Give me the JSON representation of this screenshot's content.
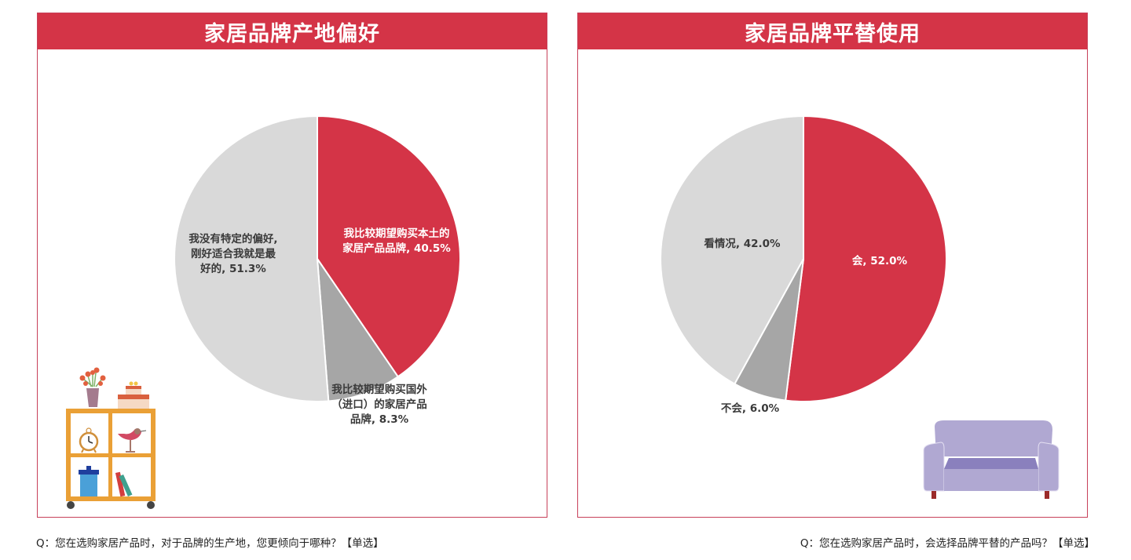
{
  "colors": {
    "accent_red": "#d43447",
    "dark_gray": "#a6a6a6",
    "light_gray": "#d9d9d9",
    "border": "#c8405a"
  },
  "left_panel": {
    "title": "家居品牌产地偏好",
    "question": "Q：您在选购家居产品时，对于品牌的生产地，您更倾向于哪种？【单选】",
    "labels": {
      "domestic_line1": "我比较期望购买本土的",
      "domestic_line2": "家居产品品牌, 40.5%",
      "import_line1": "我比较期望购买国外",
      "import_line2": "（进口）的家居产品",
      "import_line3": "品牌, 8.3%",
      "none_line1": "我没有特定的偏好,",
      "none_line2": "刚好适合我就是最",
      "none_line3": "好的, 51.3%"
    },
    "illustration": "bookshelf-illustration"
  },
  "right_panel": {
    "title": "家居品牌平替使用",
    "question": "Q：您在选购家居产品时，会选择品牌平替的产品吗？【单选】",
    "labels": {
      "yes": "会, 52.0%",
      "no": "不会, 6.0%",
      "depends": "看情况, 42.0%"
    },
    "illustration": "sofa-illustration"
  },
  "chart_data": [
    {
      "type": "pie",
      "title": "家居品牌产地偏好",
      "subtitle": "Q：您在选购家居产品时，对于品牌的生产地，您更倾向于哪种？【单选】",
      "categories": [
        "我比较期望购买本土的家居产品品牌",
        "我比较期望购买国外（进口）的家居产品品牌",
        "我没有特定的偏好，刚好适合我就是最好的"
      ],
      "values": [
        40.5,
        8.3,
        51.3
      ],
      "unit": "%",
      "colors": [
        "#d43447",
        "#a6a6a6",
        "#d9d9d9"
      ],
      "start_angle": "12 o'clock",
      "direction": "clockwise",
      "legend": "none (inline data labels)"
    },
    {
      "type": "pie",
      "title": "家居品牌平替使用",
      "subtitle": "Q：您在选购家居产品时，会选择品牌平替的产品吗？【单选】",
      "categories": [
        "会",
        "不会",
        "看情况"
      ],
      "values": [
        52.0,
        6.0,
        42.0
      ],
      "unit": "%",
      "colors": [
        "#d43447",
        "#a6a6a6",
        "#d9d9d9"
      ],
      "start_angle": "12 o'clock",
      "direction": "clockwise",
      "legend": "none (inline data labels)"
    }
  ]
}
